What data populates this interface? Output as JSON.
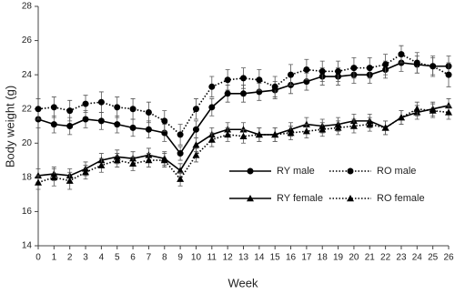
{
  "chart_data": {
    "type": "line",
    "y_label": "Body weight (g)",
    "x_label": "Week",
    "x": [
      0,
      1,
      2,
      3,
      4,
      5,
      6,
      7,
      8,
      9,
      10,
      11,
      12,
      13,
      14,
      15,
      16,
      17,
      18,
      19,
      20,
      21,
      22,
      23,
      24,
      25,
      26
    ],
    "xlim": [
      0,
      26
    ],
    "xticks": [
      0,
      1,
      2,
      3,
      4,
      5,
      6,
      7,
      8,
      9,
      10,
      11,
      12,
      13,
      14,
      15,
      16,
      17,
      18,
      19,
      20,
      21,
      22,
      23,
      24,
      25,
      26
    ],
    "ylim": [
      14,
      28
    ],
    "yticks": [
      14,
      16,
      18,
      20,
      22,
      24,
      26,
      28
    ],
    "grid": false,
    "series": [
      {
        "name": "RY male",
        "color": "#000000",
        "marker": "circle",
        "dash": false,
        "values": [
          21.4,
          21.1,
          21.0,
          21.4,
          21.3,
          21.1,
          20.9,
          20.8,
          20.6,
          19.4,
          20.8,
          22.1,
          22.9,
          22.9,
          23.0,
          23.1,
          23.4,
          23.6,
          23.9,
          23.9,
          24.0,
          24.0,
          24.3,
          24.7,
          24.6,
          24.5,
          24.5
        ],
        "errors": [
          0.5,
          0.5,
          0.5,
          0.5,
          0.5,
          0.5,
          0.5,
          0.5,
          0.5,
          0.4,
          0.5,
          0.5,
          0.5,
          0.5,
          0.5,
          0.5,
          0.5,
          0.5,
          0.5,
          0.5,
          0.5,
          0.5,
          0.5,
          0.5,
          0.5,
          0.5,
          0.6
        ]
      },
      {
        "name": "RO male",
        "color": "#000000",
        "marker": "circle",
        "dash": true,
        "values": [
          22.0,
          22.1,
          21.9,
          22.3,
          22.4,
          22.1,
          22.0,
          21.8,
          21.3,
          20.5,
          22.0,
          23.3,
          23.7,
          23.8,
          23.7,
          23.3,
          24.0,
          24.3,
          24.2,
          24.2,
          24.4,
          24.4,
          24.6,
          25.2,
          24.7,
          24.5,
          24.0
        ],
        "errors": [
          0.6,
          0.6,
          0.6,
          0.5,
          0.6,
          0.6,
          0.6,
          0.6,
          0.6,
          0.6,
          0.6,
          0.6,
          0.6,
          0.6,
          0.6,
          0.6,
          0.6,
          0.6,
          0.6,
          0.6,
          0.6,
          0.6,
          0.6,
          0.5,
          0.6,
          0.6,
          0.7
        ]
      },
      {
        "name": "RY female",
        "color": "#000000",
        "marker": "triangle",
        "dash": false,
        "values": [
          18.1,
          18.2,
          18.1,
          18.5,
          19.0,
          19.2,
          19.1,
          19.3,
          19.1,
          18.4,
          19.9,
          20.5,
          20.8,
          20.8,
          20.5,
          20.5,
          20.8,
          21.1,
          21.0,
          21.1,
          21.3,
          21.3,
          20.9,
          21.5,
          21.8,
          22.0,
          22.2
        ],
        "errors": [
          0.4,
          0.4,
          0.4,
          0.4,
          0.4,
          0.4,
          0.4,
          0.4,
          0.4,
          0.4,
          0.4,
          0.4,
          0.4,
          0.4,
          0.4,
          0.4,
          0.4,
          0.4,
          0.4,
          0.4,
          0.4,
          0.4,
          0.4,
          0.4,
          0.4,
          0.4,
          0.4
        ]
      },
      {
        "name": "RO female",
        "color": "#000000",
        "marker": "triangle",
        "dash": true,
        "values": [
          17.7,
          18.0,
          17.8,
          18.3,
          18.7,
          19.0,
          18.8,
          19.0,
          19.0,
          17.9,
          19.3,
          20.2,
          20.5,
          20.4,
          20.5,
          20.5,
          20.6,
          20.7,
          20.8,
          20.9,
          21.0,
          21.1,
          20.9,
          21.5,
          22.0,
          21.9,
          21.8
        ],
        "errors": [
          0.4,
          0.5,
          0.5,
          0.4,
          0.4,
          0.4,
          0.4,
          0.4,
          0.4,
          0.4,
          0.4,
          0.4,
          0.4,
          0.4,
          0.4,
          0.4,
          0.4,
          0.4,
          0.4,
          0.4,
          0.4,
          0.4,
          0.4,
          0.4,
          0.4,
          0.4,
          0.4
        ]
      }
    ]
  }
}
